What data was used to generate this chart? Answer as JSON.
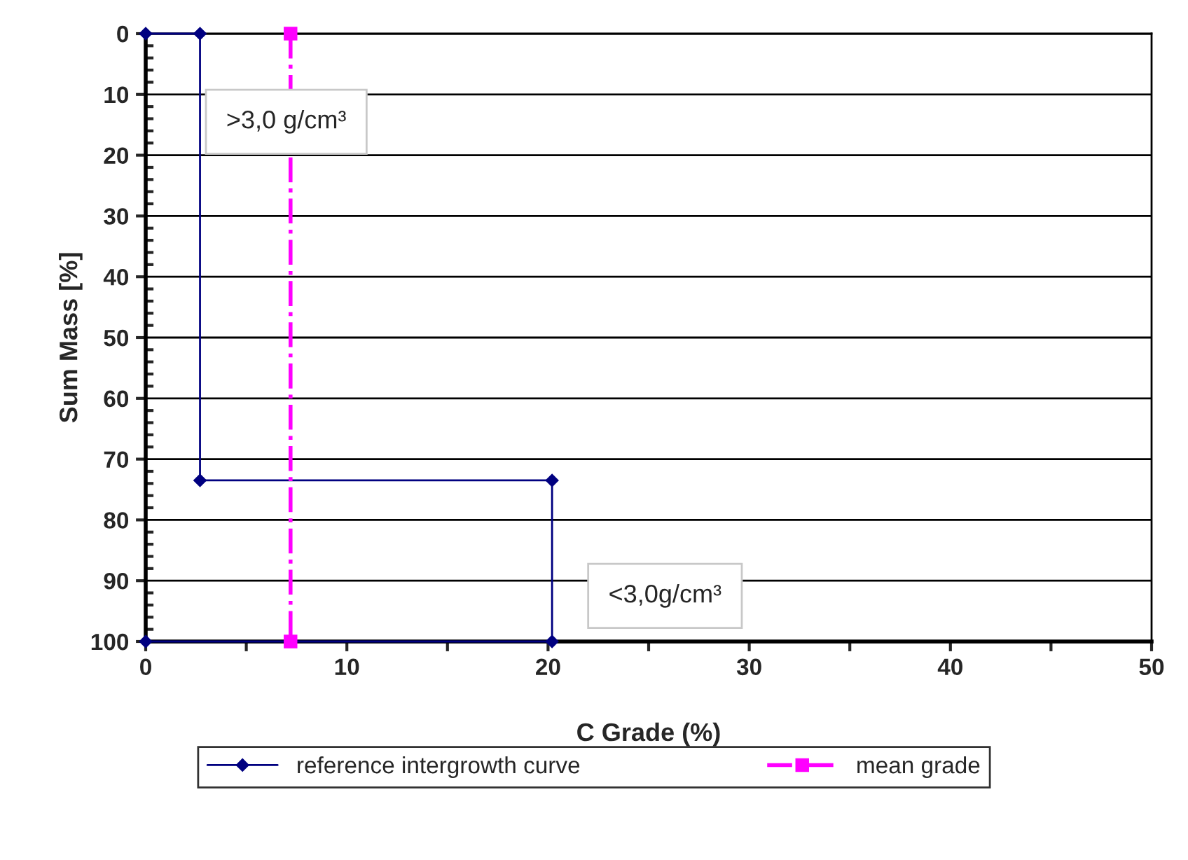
{
  "chart_data": {
    "type": "line",
    "xlabel": "C Grade (%)",
    "ylabel": "Sum Mass [%]",
    "xlim": [
      0,
      50
    ],
    "xticks": [
      0,
      {
        "value": 5,
        "label": null
      },
      10,
      {
        "value": 15,
        "label": null
      },
      20,
      {
        "value": 25,
        "label": null
      },
      30,
      {
        "value": 35,
        "label": null
      },
      40,
      {
        "value": 45,
        "label": null
      },
      50
    ],
    "ylim": [
      100,
      0
    ],
    "yticks": [
      0,
      10,
      20,
      30,
      40,
      50,
      60,
      70,
      80,
      90,
      100
    ],
    "grid": "y",
    "legend": "bottom",
    "series": [
      {
        "name": "reference intergrowth curve",
        "color": "#000080",
        "marker": "diamond",
        "line_style": "solid",
        "x": [
          0,
          2.7,
          2.7,
          20.2,
          20.2,
          0
        ],
        "values": [
          0,
          0,
          73.5,
          73.5,
          100,
          100
        ]
      },
      {
        "name": "mean grade",
        "color": "#ff00ff",
        "marker": "square",
        "line_style": "dashdot",
        "x": [
          7.2,
          7.2
        ],
        "values": [
          0,
          100
        ]
      }
    ],
    "annotations": [
      ">3,0 g/cm³",
      "<3,0g/cm³"
    ]
  }
}
